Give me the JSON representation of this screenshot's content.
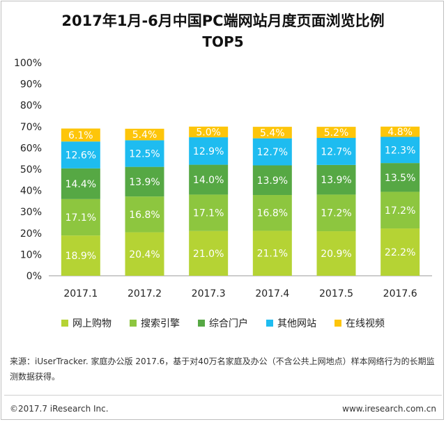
{
  "header": {
    "title_line1": "2017年1月-6月中国PC端网站月度页面浏览比例",
    "title_line2": "TOP5"
  },
  "chart_data": {
    "type": "bar",
    "stacked": true,
    "categories": [
      "2017.1",
      "2017.2",
      "2017.3",
      "2017.4",
      "2017.5",
      "2017.6"
    ],
    "series": [
      {
        "name": "网上购物",
        "color": "#b5d334",
        "values": [
          18.9,
          20.4,
          21.0,
          21.1,
          20.9,
          22.2
        ]
      },
      {
        "name": "搜索引擎",
        "color": "#8dc63f",
        "values": [
          17.1,
          16.8,
          17.1,
          16.8,
          17.2,
          17.2
        ]
      },
      {
        "name": "综合门户",
        "color": "#56a844",
        "values": [
          14.4,
          13.9,
          14.0,
          13.9,
          13.9,
          13.5
        ]
      },
      {
        "name": "其他网站",
        "color": "#1ebcf0",
        "values": [
          12.6,
          12.5,
          12.9,
          12.7,
          12.7,
          12.3
        ]
      },
      {
        "name": "在线视频",
        "color": "#fdc50a",
        "values": [
          6.1,
          5.4,
          5.0,
          5.4,
          5.2,
          4.8
        ]
      }
    ],
    "yticks": [
      "0%",
      "10%",
      "20%",
      "30%",
      "40%",
      "50%",
      "60%",
      "70%",
      "80%",
      "90%",
      "100%"
    ],
    "ylim": [
      0,
      100
    ],
    "grid": false,
    "legend_position": "bottom"
  },
  "source_text": "来源：iUserTracker. 家庭办公版 2017.6，基于对40万名家庭及办公（不含公共上网地点）样本网络行为的长期监测数据获得。",
  "footer": {
    "copyright": "©2017.7 iResearch Inc.",
    "website": "www.iresearch.com.cn"
  }
}
